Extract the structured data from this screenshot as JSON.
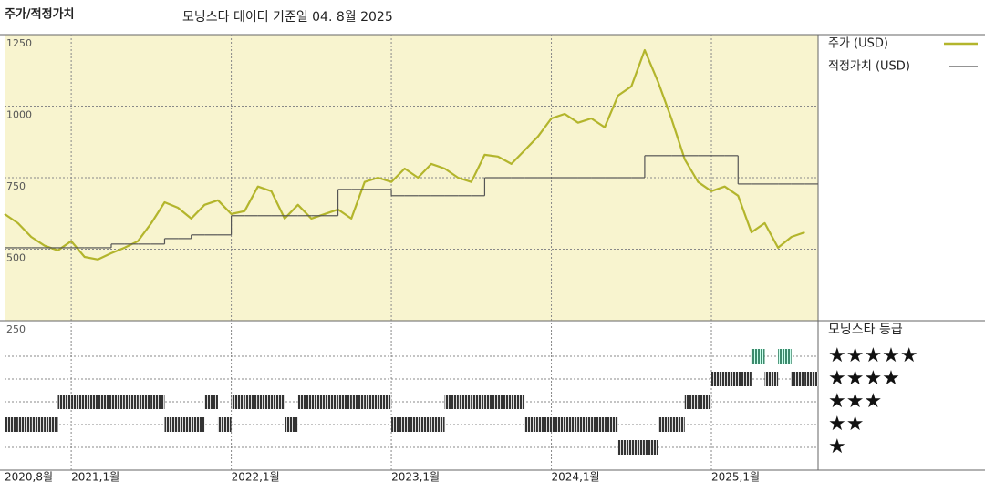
{
  "chart_data": [
    {
      "type": "line",
      "title": "주가/적정가치",
      "subtitle": "모닝스타 데이터 기준일 04. 8월 2025",
      "x": [
        "2020-08",
        "2020-09",
        "2020-10",
        "2020-11",
        "2020-12",
        "2021-01",
        "2021-02",
        "2021-03",
        "2021-04",
        "2021-05",
        "2021-06",
        "2021-07",
        "2021-08",
        "2021-09",
        "2021-10",
        "2021-11",
        "2021-12",
        "2022-01",
        "2022-02",
        "2022-03",
        "2022-04",
        "2022-05",
        "2022-06",
        "2022-07",
        "2022-08",
        "2022-09",
        "2022-10",
        "2022-11",
        "2022-12",
        "2023-01",
        "2023-02",
        "2023-03",
        "2023-04",
        "2023-05",
        "2023-06",
        "2023-07",
        "2023-08",
        "2023-09",
        "2023-10",
        "2023-11",
        "2023-12",
        "2024-01",
        "2024-02",
        "2024-03",
        "2024-04",
        "2024-05",
        "2024-06",
        "2024-07",
        "2024-08",
        "2024-09",
        "2024-10",
        "2024-11",
        "2024-12",
        "2025-01",
        "2025-02",
        "2025-03",
        "2025-04",
        "2025-05",
        "2025-06",
        "2025-07",
        "2025-08"
      ],
      "series": [
        {
          "name": "주가 (USD)",
          "color": "#b3b52c",
          "values": [
            623,
            591,
            543,
            512,
            496,
            528,
            473,
            464,
            486,
            505,
            528,
            591,
            664,
            645,
            607,
            655,
            671,
            623,
            633,
            719,
            703,
            607,
            655,
            607,
            623,
            639,
            607,
            735,
            750,
            735,
            782,
            750,
            798,
            782,
            750,
            735,
            830,
            824,
            798,
            846,
            894,
            957,
            973,
            942,
            957,
            926,
            1037,
            1069,
            1196,
            1085,
            957,
            814,
            735,
            703,
            719,
            687,
            559,
            591,
            505,
            543,
            559
          ]
        },
        {
          "name": "적정가치 (USD)",
          "color": "#555555",
          "step": true,
          "values": [
            505,
            505,
            505,
            505,
            505,
            505,
            505,
            505,
            518,
            518,
            518,
            518,
            537,
            537,
            550,
            550,
            550,
            617,
            617,
            617,
            617,
            617,
            617,
            617,
            617,
            709,
            709,
            709,
            709,
            687,
            687,
            687,
            687,
            687,
            687,
            687,
            750,
            750,
            750,
            750,
            750,
            750,
            750,
            750,
            750,
            750,
            750,
            750,
            827,
            827,
            827,
            827,
            827,
            827,
            827,
            728,
            728,
            728,
            728,
            728,
            728
          ]
        }
      ],
      "xlim": [
        "2020-08",
        "2025-09"
      ],
      "xticks": [
        {
          "value": "2020-08",
          "label": "2020,8월"
        },
        {
          "value": "2021-01",
          "label": "2021,1월"
        },
        {
          "value": "2022-01",
          "label": "2022,1월"
        },
        {
          "value": "2023-01",
          "label": "2023,1월"
        },
        {
          "value": "2024-01",
          "label": "2024,1월"
        },
        {
          "value": "2025-01",
          "label": "2025,1월"
        }
      ],
      "ylim": [
        250,
        1250
      ],
      "yticks": [
        250,
        500,
        750,
        1000,
        1250
      ],
      "grid": true
    },
    {
      "type": "rating",
      "title": "모닝스타 등급",
      "values": [
        2,
        2,
        2,
        2,
        3,
        3,
        3,
        3,
        3,
        3,
        3,
        3,
        2,
        2,
        2,
        3,
        2,
        3,
        3,
        3,
        3,
        2,
        3,
        3,
        3,
        3,
        3,
        3,
        3,
        2,
        2,
        2,
        2,
        3,
        3,
        3,
        3,
        3,
        3,
        2,
        2,
        2,
        2,
        2,
        2,
        2,
        1,
        1,
        1,
        2,
        2,
        3,
        3,
        4,
        4,
        4,
        5,
        4,
        5,
        4,
        4
      ],
      "colors": {
        "5": "#3d8a6c",
        "other": "#333333"
      },
      "ylim": [
        0,
        6
      ],
      "yticks": [
        {
          "value": 5,
          "label": "★★★★★"
        },
        {
          "value": 4,
          "label": "★★★★"
        },
        {
          "value": 3,
          "label": "★★★"
        },
        {
          "value": 2,
          "label": "★★"
        },
        {
          "value": 1,
          "label": "★"
        }
      ],
      "grid": true
    }
  ]
}
